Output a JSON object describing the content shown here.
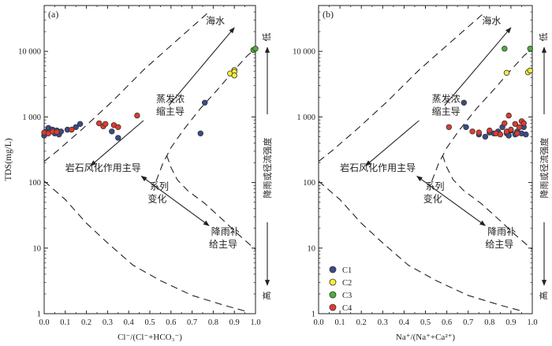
{
  "chart_data": [
    {
      "type": "scatter",
      "panel_label": "(a)",
      "xlabel": "Cl⁻/(Cl⁻+HCO₃⁻)",
      "ylabel": "TDS(mg/L)",
      "xlim": [
        0,
        1
      ],
      "ylim": [
        1,
        50000
      ],
      "y_scale": "log",
      "x_ticks": [
        "0.0",
        "0.1",
        "0.2",
        "0.3",
        "0.4",
        "0.5",
        "0.6",
        "0.7",
        "0.8",
        "0.9",
        "1.0"
      ],
      "y_ticks": [
        {
          "value": 1,
          "label": "1"
        },
        {
          "value": 10,
          "label": "10"
        },
        {
          "value": 100,
          "label": "100"
        },
        {
          "value": 1000,
          "label": "1 000"
        },
        {
          "value": 10000,
          "label": "10 000"
        }
      ],
      "annotations": {
        "seawater": "海水",
        "evaporation_line1": "蒸发浓",
        "evaporation_line2": "缩主导",
        "rock": "岩石风化作用主导",
        "series_line1": "系列",
        "series_line2": "变化",
        "rain_line1": "降雨补",
        "rain_line2": "给主导"
      },
      "side_axis": {
        "top": "低",
        "bottom": "高",
        "label": "降雨或径流强度"
      },
      "series": [
        {
          "name": "C1",
          "points": [
            [
              0.0,
              520
            ],
            [
              0.01,
              600
            ],
            [
              0.02,
              680
            ],
            [
              0.04,
              640
            ],
            [
              0.05,
              560
            ],
            [
              0.06,
              620
            ],
            [
              0.07,
              540
            ],
            [
              0.08,
              600
            ],
            [
              0.11,
              640
            ],
            [
              0.15,
              700
            ],
            [
              0.17,
              780
            ],
            [
              0.32,
              600
            ],
            [
              0.35,
              480
            ],
            [
              0.74,
              560
            ],
            [
              0.76,
              1650
            ]
          ]
        },
        {
          "name": "C2",
          "points": [
            [
              0.88,
              4600
            ],
            [
              0.9,
              5200
            ],
            [
              0.9,
              4900
            ],
            [
              0.9,
              4300
            ]
          ]
        },
        {
          "name": "C3",
          "points": [
            [
              0.99,
              10500
            ],
            [
              1.0,
              11000
            ]
          ]
        },
        {
          "name": "C4",
          "points": [
            [
              0.0,
              580
            ],
            [
              0.02,
              560
            ],
            [
              0.04,
              600
            ],
            [
              0.06,
              590
            ],
            [
              0.13,
              640
            ],
            [
              0.26,
              800
            ],
            [
              0.28,
              720
            ],
            [
              0.29,
              780
            ],
            [
              0.33,
              750
            ],
            [
              0.35,
              700
            ],
            [
              0.44,
              1050
            ]
          ]
        }
      ]
    },
    {
      "type": "scatter",
      "panel_label": "(b)",
      "xlabel": "Na⁺/(Na⁺+Ca²⁺)",
      "ylabel": "",
      "xlim": [
        0,
        1
      ],
      "ylim": [
        1,
        50000
      ],
      "y_scale": "log",
      "x_ticks": [
        "0.0",
        "0.1",
        "0.2",
        "0.3",
        "0.4",
        "0.5",
        "0.6",
        "0.7",
        "0.8",
        "0.9",
        "1.0"
      ],
      "y_ticks": [
        {
          "value": 1,
          "label": "1"
        },
        {
          "value": 10,
          "label": "10"
        },
        {
          "value": 100,
          "label": "100"
        },
        {
          "value": 1000,
          "label": "1 000"
        },
        {
          "value": 10000,
          "label": "10 000"
        }
      ],
      "annotations": {
        "seawater": "海水",
        "evaporation_line1": "蒸发浓",
        "evaporation_line2": "缩主导",
        "rock": "岩石风化作用主导",
        "series_line1": "系列",
        "series_line2": "变化",
        "rain_line1": "降雨补",
        "rain_line2": "给主导"
      },
      "side_axis": {
        "top": "低",
        "bottom": "高",
        "label": "降雨或径流强度"
      },
      "legend": {
        "position": "bottom-left",
        "entries": [
          {
            "name": "C1",
            "color": "#3a4a8c"
          },
          {
            "name": "C2",
            "color": "#f5ee3a"
          },
          {
            "name": "C3",
            "color": "#4fae3a"
          },
          {
            "name": "C4",
            "color": "#e23a2e"
          }
        ]
      },
      "series": [
        {
          "name": "C1",
          "points": [
            [
              0.68,
              1650
            ],
            [
              0.69,
              700
            ],
            [
              0.75,
              540
            ],
            [
              0.78,
              500
            ],
            [
              0.8,
              580
            ],
            [
              0.82,
              560
            ],
            [
              0.84,
              600
            ],
            [
              0.86,
              700
            ],
            [
              0.88,
              560
            ],
            [
              0.89,
              520
            ],
            [
              0.9,
              620
            ],
            [
              0.92,
              540
            ],
            [
              0.93,
              600
            ],
            [
              0.95,
              560
            ],
            [
              0.96,
              700
            ],
            [
              0.97,
              540
            ]
          ]
        },
        {
          "name": "C2",
          "points": [
            [
              0.88,
              4700
            ],
            [
              0.98,
              4800
            ],
            [
              0.99,
              5100
            ]
          ]
        },
        {
          "name": "C3",
          "points": [
            [
              0.87,
              11000
            ],
            [
              0.99,
              11000
            ]
          ]
        },
        {
          "name": "C4",
          "points": [
            [
              0.61,
              700
            ],
            [
              0.72,
              600
            ],
            [
              0.75,
              580
            ],
            [
              0.8,
              620
            ],
            [
              0.83,
              560
            ],
            [
              0.85,
              540
            ],
            [
              0.87,
              800
            ],
            [
              0.88,
              600
            ],
            [
              0.89,
              1050
            ],
            [
              0.9,
              640
            ],
            [
              0.92,
              780
            ],
            [
              0.93,
              560
            ],
            [
              0.94,
              700
            ],
            [
              0.95,
              860
            ],
            [
              0.96,
              800
            ]
          ]
        }
      ]
    }
  ],
  "colors": {
    "C1": "#3a4a8c",
    "C2": "#f5ee3a",
    "C3": "#4fae3a",
    "C4": "#e23a2e"
  }
}
